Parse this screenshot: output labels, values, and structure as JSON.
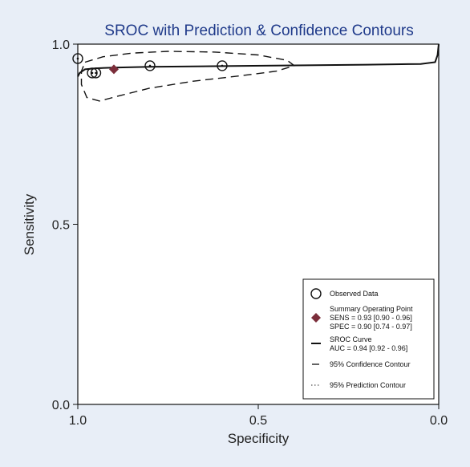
{
  "colors": {
    "background": "#e8eef7",
    "title": "#1f3a8a",
    "point": "#7b2d3a",
    "line": "#111111"
  },
  "chart_data": {
    "type": "scatter",
    "title": "SROC with Prediction & Confidence Contours",
    "xlabel": "Specificity",
    "ylabel": "Sensitivity",
    "xlim": [
      1.0,
      0.0
    ],
    "ylim": [
      0.0,
      1.0
    ],
    "x_reversed": true,
    "xticks": [
      "1.0",
      "0.5",
      "0.0"
    ],
    "yticks": [
      "0.0",
      "0.5",
      "1.0"
    ],
    "grid": false,
    "legend_position": "bottom-right",
    "observed_data": [
      {
        "spec": 1.0,
        "sens": 0.96
      },
      {
        "spec": 0.96,
        "sens": 0.92
      },
      {
        "spec": 0.95,
        "sens": 0.92
      },
      {
        "spec": 0.8,
        "sens": 0.94
      },
      {
        "spec": 0.6,
        "sens": 0.94
      }
    ],
    "summary_point": {
      "spec": 0.9,
      "sens": 0.93
    },
    "sroc_curve": [
      {
        "spec": 1.0,
        "sens": 0.91
      },
      {
        "spec": 0.995,
        "sens": 0.92
      },
      {
        "spec": 0.98,
        "sens": 0.93
      },
      {
        "spec": 0.95,
        "sens": 0.933
      },
      {
        "spec": 0.9,
        "sens": 0.935
      },
      {
        "spec": 0.8,
        "sens": 0.937
      },
      {
        "spec": 0.6,
        "sens": 0.939
      },
      {
        "spec": 0.4,
        "sens": 0.941
      },
      {
        "spec": 0.2,
        "sens": 0.943
      },
      {
        "spec": 0.05,
        "sens": 0.945
      },
      {
        "spec": 0.01,
        "sens": 0.95
      },
      {
        "spec": 0.003,
        "sens": 0.97
      },
      {
        "spec": 0.0,
        "sens": 1.0
      }
    ],
    "confidence_contour": [
      {
        "spec": 0.98,
        "sens": 0.95
      },
      {
        "spec": 0.93,
        "sens": 0.965
      },
      {
        "spec": 0.85,
        "sens": 0.975
      },
      {
        "spec": 0.75,
        "sens": 0.98
      },
      {
        "spec": 0.62,
        "sens": 0.978
      },
      {
        "spec": 0.5,
        "sens": 0.97
      },
      {
        "spec": 0.42,
        "sens": 0.955
      },
      {
        "spec": 0.4,
        "sens": 0.94
      },
      {
        "spec": 0.45,
        "sens": 0.925
      },
      {
        "spec": 0.55,
        "sens": 0.912
      },
      {
        "spec": 0.68,
        "sens": 0.897
      },
      {
        "spec": 0.8,
        "sens": 0.878
      },
      {
        "spec": 0.88,
        "sens": 0.858
      },
      {
        "spec": 0.94,
        "sens": 0.842
      },
      {
        "spec": 0.975,
        "sens": 0.852
      },
      {
        "spec": 0.99,
        "sens": 0.888
      },
      {
        "spec": 0.99,
        "sens": 0.925
      },
      {
        "spec": 0.98,
        "sens": 0.95
      }
    ],
    "prediction_contour": [],
    "legend": {
      "observed": "Observed Data",
      "summary": "Summary Operating Point",
      "sens": "SENS = 0.93 [0.90 - 0.96]",
      "spec": "SPEC = 0.90 [0.74 - 0.97]",
      "sroc": "SROC Curve",
      "auc": "AUC = 0.94 [0.92 - 0.96]",
      "confidence": "95% Confidence Contour",
      "prediction": "95% Prediction Contour"
    }
  }
}
